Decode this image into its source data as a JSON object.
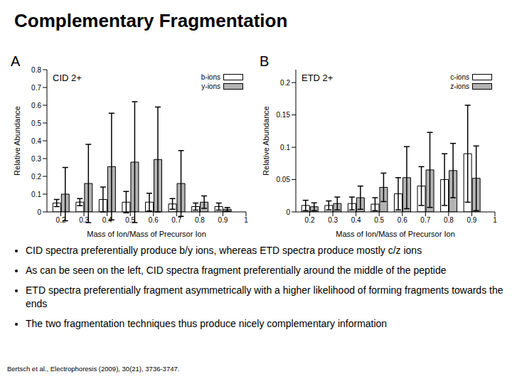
{
  "title": "Complementary Fragmentation",
  "chart_data": [
    {
      "type": "bar",
      "panel_label": "A",
      "annotation": "CID 2+",
      "xlabel": "Mass of Ion/Mass of Precursor Ion",
      "ylabel": "Relative Abundance",
      "x": [
        0.2,
        0.3,
        0.4,
        0.5,
        0.6,
        0.7,
        0.8,
        0.9
      ],
      "xlim": [
        0.14,
        1
      ],
      "xticks": [
        0.2,
        0.3,
        0.4,
        0.5,
        0.6,
        0.7,
        0.8,
        0.9,
        1
      ],
      "ylim": [
        0,
        0.8
      ],
      "yticks": [
        0,
        0.1,
        0.2,
        0.3,
        0.4,
        0.5,
        0.6,
        0.7,
        0.8
      ],
      "grid": false,
      "legend": "upper right",
      "series": [
        {
          "name": "b-ions",
          "color": "#ffffff",
          "values": [
            0.05,
            0.055,
            0.07,
            0.055,
            0.055,
            0.045,
            0.03,
            0.03
          ],
          "errors": [
            0.02,
            0.02,
            0.07,
            0.06,
            0.05,
            0.03,
            0.02,
            0.02
          ]
        },
        {
          "name": "y-ions",
          "color": "#b3b3b3",
          "values": [
            0.1,
            0.16,
            0.255,
            0.28,
            0.295,
            0.16,
            0.055,
            0.015
          ],
          "errors": [
            0.15,
            0.22,
            0.3,
            0.34,
            0.295,
            0.185,
            0.035,
            0.01
          ]
        }
      ]
    },
    {
      "type": "bar",
      "panel_label": "B",
      "annotation": "ETD 2+",
      "xlabel": "Mass of Ion/Mass of Precursor Ion",
      "ylabel": "Relative Abundance",
      "x": [
        0.2,
        0.3,
        0.4,
        0.5,
        0.6,
        0.7,
        0.8,
        0.9
      ],
      "xlim": [
        0.14,
        1
      ],
      "xticks": [
        0.2,
        0.3,
        0.4,
        0.5,
        0.6,
        0.7,
        0.8,
        0.9,
        1
      ],
      "ylim": [
        0,
        0.22
      ],
      "yticks": [
        0,
        0.05,
        0.1,
        0.15,
        0.2
      ],
      "grid": false,
      "legend": "upper right",
      "series": [
        {
          "name": "c-ions",
          "color": "#ffffff",
          "values": [
            0.01,
            0.01,
            0.013,
            0.012,
            0.028,
            0.04,
            0.05,
            0.09
          ],
          "errors": [
            0.008,
            0.007,
            0.01,
            0.01,
            0.025,
            0.03,
            0.04,
            0.075
          ]
        },
        {
          "name": "z-ions",
          "color": "#b3b3b3",
          "values": [
            0.008,
            0.013,
            0.022,
            0.038,
            0.053,
            0.065,
            0.064,
            0.052
          ],
          "errors": [
            0.006,
            0.01,
            0.018,
            0.022,
            0.048,
            0.058,
            0.042,
            0.05
          ]
        }
      ]
    }
  ],
  "bullets": [
    "CID spectra preferentially produce b/y ions, whereas ETD spectra produce mostly c/z ions",
    "As can be seen on the left, CID spectra fragment preferentially around the middle of the peptide",
    "ETD spectra preferentially fragment asymmetrically with a higher likelihood of forming fragments towards the ends",
    "The two fragmentation techniques thus produce nicely complementary information"
  ],
  "citation": "Bertsch et al., Electrophoresis (2009), 30(21), 3736-3747."
}
